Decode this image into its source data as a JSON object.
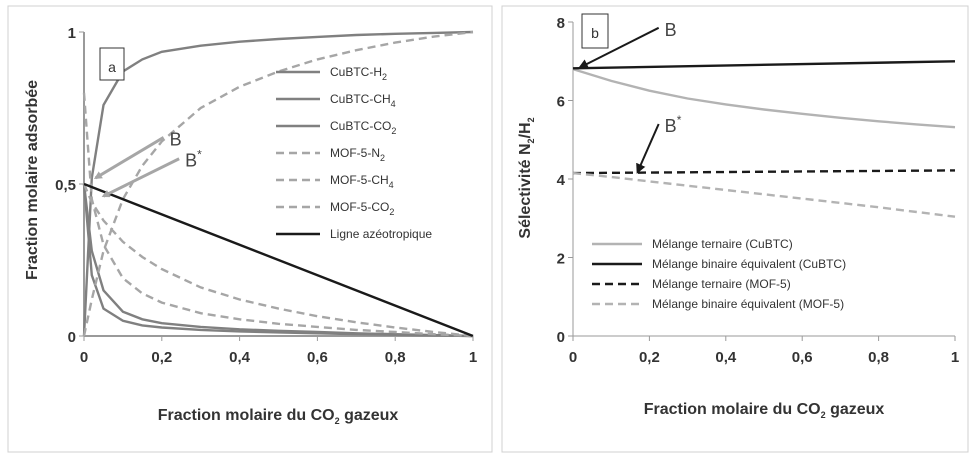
{
  "chart_data": [
    {
      "type": "line",
      "panel_label": "a",
      "xlabel": "Fraction molaire du CO2 gazeux",
      "xlabel_main": "Fraction molaire du CO",
      "xlabel_sub": "2",
      "xlabel_tail": " gazeux",
      "ylabel": "Fraction molaire adsorbée",
      "xlim": [
        0,
        1
      ],
      "ylim": [
        0,
        1
      ],
      "x_ticks": [
        "0",
        "0,2",
        "0,4",
        "0,6",
        "0,8",
        "1"
      ],
      "y_ticks": [
        "0",
        "0,5",
        "1"
      ],
      "legend_position": "right",
      "grid": false,
      "series": [
        {
          "name": "CuBTC-H2",
          "name_main": "CuBTC-H",
          "name_sub": "2",
          "color": "#808080",
          "dash": "solid",
          "x": [
            0,
            0.02,
            0.05,
            0.1,
            0.15,
            0.2,
            0.3,
            0.4,
            0.5,
            0.6,
            0.7,
            0.8,
            0.9,
            1
          ],
          "y": [
            0.5,
            0.2,
            0.09,
            0.05,
            0.035,
            0.028,
            0.02,
            0.015,
            0.012,
            0.009,
            0.006,
            0.004,
            0.002,
            0
          ]
        },
        {
          "name": "CuBTC-CH4",
          "name_main": "CuBTC-CH",
          "name_sub": "4",
          "color": "#808080",
          "dash": "solid",
          "x": [
            0,
            0.02,
            0.05,
            0.1,
            0.15,
            0.2,
            0.3,
            0.4,
            0.5,
            0.6,
            0.7,
            0.8,
            0.9,
            1
          ],
          "y": [
            0.5,
            0.28,
            0.15,
            0.08,
            0.055,
            0.042,
            0.03,
            0.022,
            0.017,
            0.013,
            0.009,
            0.006,
            0.003,
            0
          ]
        },
        {
          "name": "CuBTC-CO2",
          "name_main": "CuBTC-CO",
          "name_sub": "2",
          "color": "#808080",
          "dash": "solid",
          "x": [
            0,
            0.02,
            0.05,
            0.1,
            0.15,
            0.2,
            0.3,
            0.4,
            0.5,
            0.6,
            0.7,
            0.8,
            0.9,
            1
          ],
          "y": [
            0,
            0.52,
            0.76,
            0.87,
            0.91,
            0.935,
            0.955,
            0.968,
            0.977,
            0.984,
            0.99,
            0.994,
            0.997,
            1
          ]
        },
        {
          "name": "MOF-5-N2",
          "name_main": "MOF-5-N",
          "name_sub": "2",
          "color": "#a6a6a6",
          "dash": "dashed",
          "x": [
            0,
            0.02,
            0.05,
            0.1,
            0.15,
            0.2,
            0.3,
            0.4,
            0.5,
            0.6,
            0.7,
            0.8,
            0.9,
            1
          ],
          "y": [
            0.8,
            0.45,
            0.3,
            0.19,
            0.14,
            0.11,
            0.075,
            0.055,
            0.04,
            0.03,
            0.02,
            0.013,
            0.006,
            0
          ]
        },
        {
          "name": "MOF-5-CH4",
          "name_main": "MOF-5-CH",
          "name_sub": "4",
          "color": "#a6a6a6",
          "dash": "dashed",
          "x": [
            0,
            0.02,
            0.05,
            0.1,
            0.15,
            0.2,
            0.3,
            0.4,
            0.5,
            0.6,
            0.7,
            0.8,
            0.9,
            1
          ],
          "y": [
            0.5,
            0.44,
            0.38,
            0.31,
            0.26,
            0.22,
            0.16,
            0.12,
            0.09,
            0.065,
            0.045,
            0.028,
            0.013,
            0
          ]
        },
        {
          "name": "MOF-5-CO2",
          "name_main": "MOF-5-CO",
          "name_sub": "2",
          "color": "#a6a6a6",
          "dash": "dashed",
          "x": [
            0,
            0.02,
            0.05,
            0.1,
            0.15,
            0.2,
            0.3,
            0.4,
            0.5,
            0.6,
            0.7,
            0.8,
            0.9,
            1
          ],
          "y": [
            0,
            0.12,
            0.28,
            0.45,
            0.56,
            0.64,
            0.75,
            0.82,
            0.87,
            0.91,
            0.94,
            0.965,
            0.985,
            1
          ]
        },
        {
          "name": "Ligne azéotropique",
          "color": "#1a1a1a",
          "dash": "solid",
          "x": [
            0,
            1
          ],
          "y": [
            0.5,
            0
          ]
        }
      ],
      "annotations": [
        {
          "text": "B",
          "sup": "",
          "x": 0.22,
          "y": 0.64,
          "arrow_to": [
            0.03,
            0.52
          ]
        },
        {
          "text": "B",
          "sup": "*",
          "x": 0.26,
          "y": 0.57,
          "arrow_to": [
            0.05,
            0.46
          ]
        }
      ]
    },
    {
      "type": "line",
      "panel_label": "b",
      "xlabel": "Fraction molaire du CO2 gazeux",
      "xlabel_main": "Fraction molaire du CO",
      "xlabel_sub": "2",
      "xlabel_tail": " gazeux",
      "ylabel": "Sélectivité N2/H2",
      "ylabel_parts": [
        "Sélectivité N",
        "2",
        "/H",
        "2"
      ],
      "xlim": [
        0,
        1
      ],
      "ylim": [
        0,
        8
      ],
      "x_ticks": [
        "0",
        "0,2",
        "0,4",
        "0,6",
        "0,8",
        "1"
      ],
      "y_ticks": [
        "0",
        "2",
        "4",
        "6",
        "8"
      ],
      "legend_position": "bottom-left",
      "grid": false,
      "series": [
        {
          "name": "Mélange ternaire (CuBTC)",
          "color": "#b3b3b3",
          "dash": "solid",
          "x": [
            0,
            0.1,
            0.2,
            0.3,
            0.4,
            0.5,
            0.6,
            0.7,
            0.8,
            0.9,
            1
          ],
          "y": [
            6.8,
            6.5,
            6.25,
            6.05,
            5.9,
            5.77,
            5.66,
            5.56,
            5.47,
            5.39,
            5.32
          ]
        },
        {
          "name": "Mélange binaire équivalent (CuBTC)",
          "color": "#1a1a1a",
          "dash": "solid",
          "x": [
            0,
            1
          ],
          "y": [
            6.82,
            7.0
          ]
        },
        {
          "name": "Mélange ternaire (MOF-5)",
          "color": "#1a1a1a",
          "dash": "dashed",
          "x": [
            0,
            1
          ],
          "y": [
            4.15,
            4.22
          ]
        },
        {
          "name": "Mélange binaire équivalent (MOF-5)",
          "color": "#b3b3b3",
          "dash": "dashed",
          "x": [
            0,
            0.1,
            0.2,
            0.3,
            0.4,
            0.5,
            0.6,
            0.7,
            0.8,
            0.9,
            1
          ],
          "y": [
            4.15,
            4.05,
            3.94,
            3.83,
            3.72,
            3.61,
            3.5,
            3.39,
            3.28,
            3.16,
            3.04
          ]
        }
      ],
      "annotations": [
        {
          "text": "B",
          "sup": "",
          "x": 0.24,
          "y": 7.75,
          "arrow_to": [
            0.02,
            6.85
          ]
        },
        {
          "text": "B",
          "sup": "*",
          "x": 0.24,
          "y": 5.3,
          "arrow_to": [
            0.17,
            4.2
          ]
        }
      ]
    }
  ]
}
